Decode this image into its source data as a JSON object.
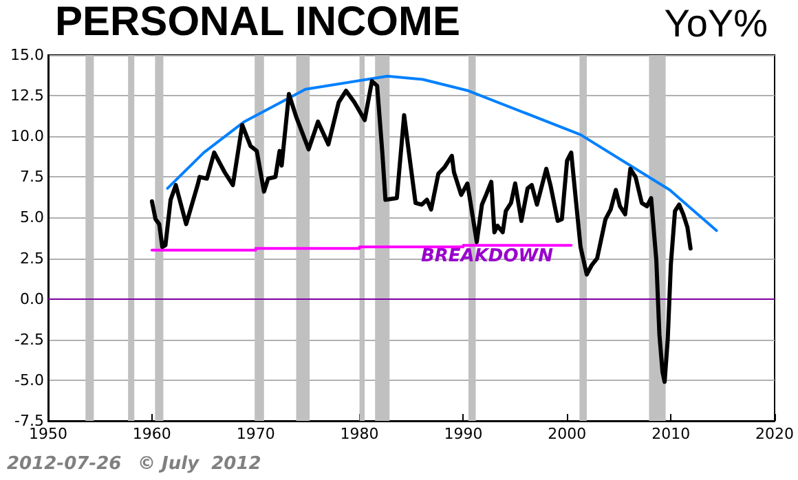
{
  "chart_data": {
    "type": "line",
    "title": "PERSONAL INCOME",
    "subtitle": "YoY%",
    "xlim": [
      1950,
      2020
    ],
    "xticks": [
      1950,
      1960,
      1970,
      1980,
      1990,
      2000,
      2010,
      2020
    ],
    "ylim": [
      -7.5,
      15
    ],
    "yticks": [
      {
        "value": -7.5,
        "label": "-7.5"
      },
      {
        "value": -5,
        "label": "-5.0"
      },
      {
        "value": -2.5,
        "label": "-2.5"
      },
      {
        "value": 0,
        "label": "0.0"
      },
      {
        "value": 2.5,
        "label": "2.5"
      },
      {
        "value": 5,
        "label": "5.0"
      },
      {
        "value": 7.5,
        "label": "7.5"
      },
      {
        "value": 10,
        "label": "10.0"
      },
      {
        "value": 12.5,
        "label": "12.5"
      },
      {
        "value": 15,
        "label": "15.0"
      }
    ],
    "grid": "y",
    "marker": "none",
    "line_style": "solid",
    "series": [
      {
        "color": "#000000",
        "x": [
          1960,
          1960.35,
          1960.7,
          1961,
          1961.3,
          1961.8,
          1962.3,
          1963.3,
          1964.4,
          1964.6,
          1965.3,
          1966,
          1967,
          1967.8,
          1968.7,
          1969.5,
          1970.1,
          1970.8,
          1971.2,
          1971.9,
          1972.3,
          1972.5,
          1973.2,
          1973.9,
          1975.1,
          1976,
          1977,
          1978,
          1978.7,
          1979.5,
          1980.5,
          1981.2,
          1981.7,
          1982.2,
          1982.5,
          1983.6,
          1984.3,
          1984.7,
          1985.4,
          1986,
          1986.5,
          1986.9,
          1987.6,
          1988.2,
          1988.9,
          1989.1,
          1989.8,
          1990.4,
          1990.9,
          1991.3,
          1991.8,
          1992.2,
          1992.7,
          1993,
          1993.3,
          1993.8,
          1994.1,
          1994.6,
          1995,
          1995.6,
          1996.2,
          1996.6,
          1997.1,
          1998,
          1998.4,
          1999.1,
          1999.5,
          2000,
          2000.4,
          2000.8,
          2001.3,
          2001.9,
          2002.4,
          2002.9,
          2003.7,
          2004.2,
          2004.7,
          2005.1,
          2005.6,
          2006.1,
          2006.6,
          2007.2,
          2007.7,
          2008.1,
          2008.6,
          2008.9,
          2009.2,
          2009.4,
          2009.7,
          2010,
          2010.4,
          2010.8,
          2011.2,
          2011.6,
          2011.9
        ],
        "values": [
          6,
          4.9,
          4.6,
          3.2,
          3.3,
          6.1,
          7,
          4.6,
          7,
          7.5,
          7.4,
          9,
          7.8,
          7,
          10.7,
          9.4,
          9.1,
          6.6,
          7.4,
          7.5,
          9.1,
          8.2,
          12.6,
          11.2,
          9.2,
          10.9,
          9.5,
          12.1,
          12.8,
          12.1,
          11,
          13.4,
          13.1,
          9,
          6.1,
          6.2,
          11.3,
          9.3,
          5.9,
          5.8,
          6.1,
          5.5,
          7.7,
          8.1,
          8.8,
          7.8,
          6.4,
          7.1,
          5.1,
          3.5,
          5.8,
          6.4,
          7.2,
          4.1,
          4.5,
          4.1,
          5.4,
          5.9,
          7.1,
          4.8,
          6.8,
          7,
          5.8,
          8,
          7,
          4.8,
          4.9,
          8.5,
          9,
          6.4,
          3.2,
          1.5,
          2.1,
          2.5,
          4.9,
          5.5,
          6.7,
          5.7,
          5.2,
          8,
          7.5,
          5.9,
          5.7,
          6.2,
          2.4,
          -2.2,
          -4.5,
          -5.1,
          -2.5,
          2.1,
          5.4,
          5.8,
          5.2,
          4.4,
          3.1
        ]
      },
      {
        "color": "#0080ff",
        "x": [
          1961.5,
          1965,
          1968.9,
          1974.8,
          1982.7,
          1986.1,
          1990.5,
          2001.3,
          2006.1,
          2009.9,
          2014.4
        ],
        "values": [
          6.8,
          9,
          10.9,
          12.9,
          13.7,
          13.5,
          12.8,
          10.1,
          8.2,
          6.7,
          4.2
        ]
      },
      {
        "color": "#ff00ff",
        "x": [
          1960,
          1970,
          1970,
          1980,
          1980,
          1990,
          1990,
          2000.4
        ],
        "values": [
          3,
          3,
          3.1,
          3.1,
          3.2,
          3.2,
          3.3,
          3.3
        ]
      }
    ],
    "ref_lines": [
      {
        "axis": "y",
        "value": 0,
        "color": "#8000a0"
      }
    ],
    "bands": [
      {
        "axis": "x",
        "from": 1953.6,
        "to": 1954.4,
        "color": "#c0c0c0"
      },
      {
        "axis": "x",
        "from": 1957.7,
        "to": 1958.3,
        "color": "#c0c0c0"
      },
      {
        "axis": "x",
        "from": 1960.3,
        "to": 1961.1,
        "color": "#c0c0c0"
      },
      {
        "axis": "x",
        "from": 1969.9,
        "to": 1970.8,
        "color": "#c0c0c0"
      },
      {
        "axis": "x",
        "from": 1973.9,
        "to": 1975.2,
        "color": "#c0c0c0"
      },
      {
        "axis": "x",
        "from": 1980,
        "to": 1980.5,
        "color": "#c0c0c0"
      },
      {
        "axis": "x",
        "from": 1981.5,
        "to": 1982.9,
        "color": "#c0c0c0"
      },
      {
        "axis": "x",
        "from": 1990.5,
        "to": 1991.2,
        "color": "#c0c0c0"
      },
      {
        "axis": "x",
        "from": 2001.2,
        "to": 2001.9,
        "color": "#c0c0c0"
      },
      {
        "axis": "x",
        "from": 2007.9,
        "to": 2009.5,
        "color": "#c0c0c0"
      }
    ],
    "annotations": [
      "BREAKDOWN",
      "2012-07-26",
      "© July  2012"
    ]
  }
}
